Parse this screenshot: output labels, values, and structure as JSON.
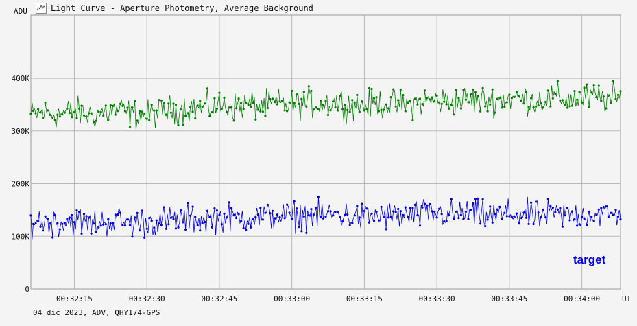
{
  "window": {
    "title": "Light Curve - Aperture Photometry, Average Background",
    "icon": "light-curve-icon"
  },
  "footer": {
    "text": "04 dic 2023, ADV, QHY174-GPS"
  },
  "chart_data": {
    "type": "line",
    "title": "Light Curve - Aperture Photometry, Average Background",
    "ylabel": "ADU",
    "xlabel": "UT",
    "ylim": [
      0,
      520000
    ],
    "xlim": [
      "00:32:06",
      "00:34:08"
    ],
    "yticks": [
      {
        "value": 0,
        "label": "0"
      },
      {
        "value": 100000,
        "label": "100K"
      },
      {
        "value": 200000,
        "label": "200K"
      },
      {
        "value": 300000,
        "label": "300K"
      },
      {
        "value": 400000,
        "label": "400K"
      }
    ],
    "xticks": [
      "00:32:15",
      "00:32:30",
      "00:32:45",
      "00:33:00",
      "00:33:15",
      "00:33:30",
      "00:33:45",
      "00:34:00"
    ],
    "grid": true,
    "series": [
      {
        "name": "",
        "color": "#008000",
        "points_x": [
          "00:32:06",
          "00:32:09",
          "00:32:12",
          "00:32:15",
          "00:32:18",
          "00:32:21",
          "00:32:24",
          "00:32:27",
          "00:32:30",
          "00:32:33",
          "00:32:36",
          "00:32:39",
          "00:32:42",
          "00:32:45",
          "00:32:48",
          "00:32:51",
          "00:32:54",
          "00:32:57",
          "00:33:00",
          "00:33:03",
          "00:33:06",
          "00:33:09",
          "00:33:12",
          "00:33:15",
          "00:33:18",
          "00:33:21",
          "00:33:24",
          "00:33:27",
          "00:33:30",
          "00:33:33",
          "00:33:36",
          "00:33:39",
          "00:33:42",
          "00:33:45",
          "00:33:48",
          "00:33:51",
          "00:33:54",
          "00:33:57",
          "00:34:00",
          "00:34:03",
          "00:34:06",
          "00:34:08"
        ],
        "values": [
          330000,
          335000,
          332000,
          338000,
          330000,
          335000,
          340000,
          332000,
          330000,
          336000,
          341000,
          345000,
          343000,
          348000,
          346000,
          350000,
          347000,
          352000,
          349000,
          354000,
          351000,
          356000,
          350000,
          348000,
          353000,
          351000,
          349000,
          356000,
          358000,
          355000,
          360000,
          357000,
          359000,
          362000,
          361000,
          358000,
          363000,
          360000,
          362000,
          364000,
          361000,
          360000
        ]
      },
      {
        "name": "target",
        "color": "#0000e0",
        "points_x": [
          "00:32:06",
          "00:32:09",
          "00:32:12",
          "00:32:15",
          "00:32:18",
          "00:32:21",
          "00:32:24",
          "00:32:27",
          "00:32:30",
          "00:32:33",
          "00:32:36",
          "00:32:39",
          "00:32:42",
          "00:32:45",
          "00:32:48",
          "00:32:51",
          "00:32:54",
          "00:32:57",
          "00:33:00",
          "00:33:03",
          "00:33:06",
          "00:33:09",
          "00:33:12",
          "00:33:15",
          "00:33:18",
          "00:33:21",
          "00:33:24",
          "00:33:27",
          "00:33:30",
          "00:33:33",
          "00:33:36",
          "00:33:39",
          "00:33:42",
          "00:33:45",
          "00:33:48",
          "00:33:51",
          "00:33:54",
          "00:33:57",
          "00:34:00",
          "00:34:03",
          "00:34:06",
          "00:34:08"
        ],
        "values": [
          130000,
          128000,
          126000,
          130000,
          124000,
          127000,
          129000,
          125000,
          127000,
          128000,
          131000,
          133000,
          132000,
          136000,
          134000,
          138000,
          136000,
          140000,
          137000,
          141000,
          139000,
          143000,
          138000,
          136000,
          140000,
          138000,
          137000,
          142000,
          144000,
          141000,
          145000,
          140000,
          139000,
          143000,
          141000,
          138000,
          142000,
          140000,
          141000,
          143000,
          140000,
          139000
        ]
      }
    ],
    "annotations": [
      {
        "text": "target",
        "color": "#0000e0"
      }
    ]
  }
}
